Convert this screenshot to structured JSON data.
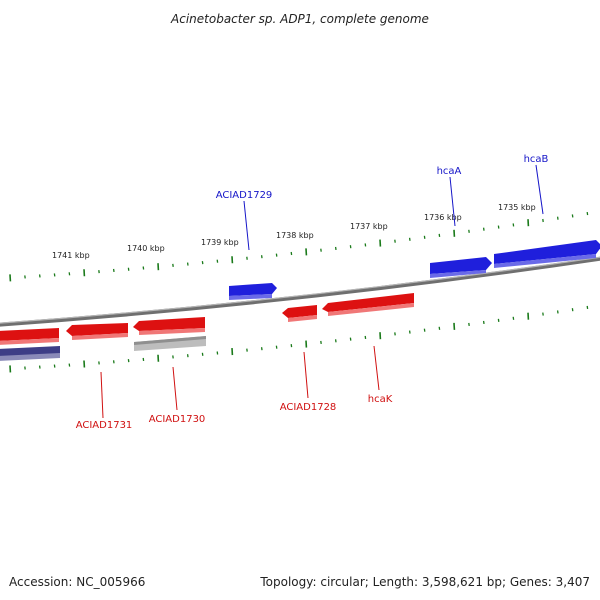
{
  "title": "Acinetobacter sp. ADP1, complete genome",
  "accession": "Accession: NC_005966",
  "topology": "Topology: circular; Length: 3,598,621 bp; Genes: 3,407",
  "colors": {
    "forward": "#1f1fdc",
    "reverse": "#dd1111",
    "reverse_label": "#d01010",
    "forward_label": "#1515c8",
    "tick": "#1a7a1a",
    "backbone": "#808080",
    "pseudo": "#aaaaaa",
    "other_track": "#3d3d86"
  },
  "scale_ticks": [
    {
      "label": "1741 kbp"
    },
    {
      "label": "1740 kbp"
    },
    {
      "label": "1739 kbp"
    },
    {
      "label": "1738 kbp"
    },
    {
      "label": "1737 kbp"
    },
    {
      "label": "1736 kbp"
    },
    {
      "label": "1735 kbp"
    }
  ],
  "genes": {
    "forward": [
      {
        "name": "ACIAD1729"
      },
      {
        "name": "hcaA"
      },
      {
        "name": "hcaB"
      }
    ],
    "reverse": [
      {
        "name": "ACIAD1731"
      },
      {
        "name": "ACIAD1730"
      },
      {
        "name": "ACIAD1728"
      },
      {
        "name": "hcaK"
      }
    ]
  }
}
